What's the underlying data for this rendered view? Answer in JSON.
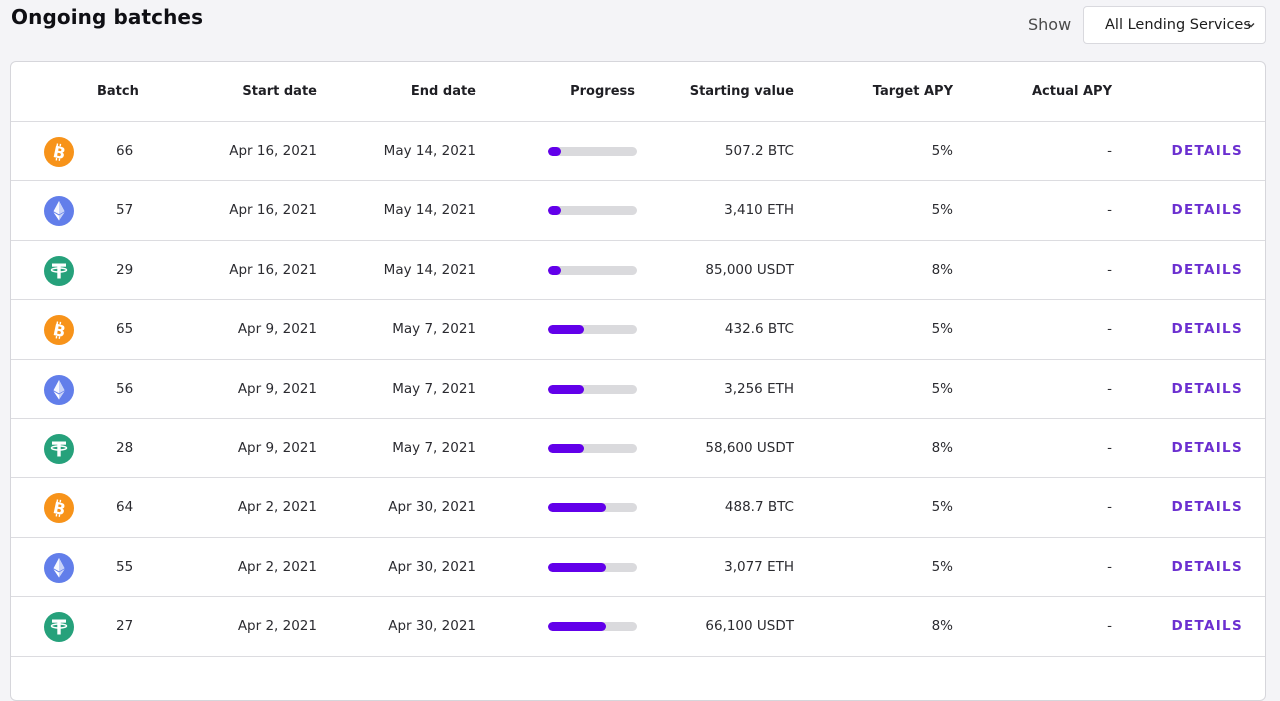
{
  "header": {
    "title": "Ongoing batches",
    "show_label": "Show",
    "filter_value": "All Lending Services"
  },
  "table": {
    "columns": {
      "batch": "Batch",
      "start_date": "Start date",
      "end_date": "End date",
      "progress": "Progress",
      "starting_value": "Starting value",
      "target_apy": "Target APY",
      "actual_apy": "Actual APY"
    },
    "action_label": "DETAILS",
    "rows": [
      {
        "coin": "btc-icon",
        "batch": "66",
        "start": "Apr 16, 2021",
        "end": "May 14, 2021",
        "progress": 0.15,
        "value": "507.2 BTC",
        "target": "5%",
        "actual": "-"
      },
      {
        "coin": "eth-icon",
        "batch": "57",
        "start": "Apr 16, 2021",
        "end": "May 14, 2021",
        "progress": 0.15,
        "value": "3,410 ETH",
        "target": "5%",
        "actual": "-"
      },
      {
        "coin": "usdt-icon",
        "batch": "29",
        "start": "Apr 16, 2021",
        "end": "May 14, 2021",
        "progress": 0.15,
        "value": "85,000 USDT",
        "target": "8%",
        "actual": "-"
      },
      {
        "coin": "btc-icon",
        "batch": "65",
        "start": "Apr 9, 2021",
        "end": "May 7, 2021",
        "progress": 0.4,
        "value": "432.6 BTC",
        "target": "5%",
        "actual": "-"
      },
      {
        "coin": "eth-icon",
        "batch": "56",
        "start": "Apr 9, 2021",
        "end": "May 7, 2021",
        "progress": 0.4,
        "value": "3,256 ETH",
        "target": "5%",
        "actual": "-"
      },
      {
        "coin": "usdt-icon",
        "batch": "28",
        "start": "Apr 9, 2021",
        "end": "May 7, 2021",
        "progress": 0.4,
        "value": "58,600 USDT",
        "target": "8%",
        "actual": "-"
      },
      {
        "coin": "btc-icon",
        "batch": "64",
        "start": "Apr 2, 2021",
        "end": "Apr 30, 2021",
        "progress": 0.65,
        "value": "488.7 BTC",
        "target": "5%",
        "actual": "-"
      },
      {
        "coin": "eth-icon",
        "batch": "55",
        "start": "Apr 2, 2021",
        "end": "Apr 30, 2021",
        "progress": 0.65,
        "value": "3,077 ETH",
        "target": "5%",
        "actual": "-"
      },
      {
        "coin": "usdt-icon",
        "batch": "27",
        "start": "Apr 2, 2021",
        "end": "Apr 30, 2021",
        "progress": 0.65,
        "value": "66,100 USDT",
        "target": "8%",
        "actual": "-"
      }
    ]
  },
  "colors": {
    "accent": "#6200ea",
    "link": "#6b2fd0",
    "btc": "#f7931a",
    "eth": "#627eea",
    "usdt": "#26a17b"
  }
}
